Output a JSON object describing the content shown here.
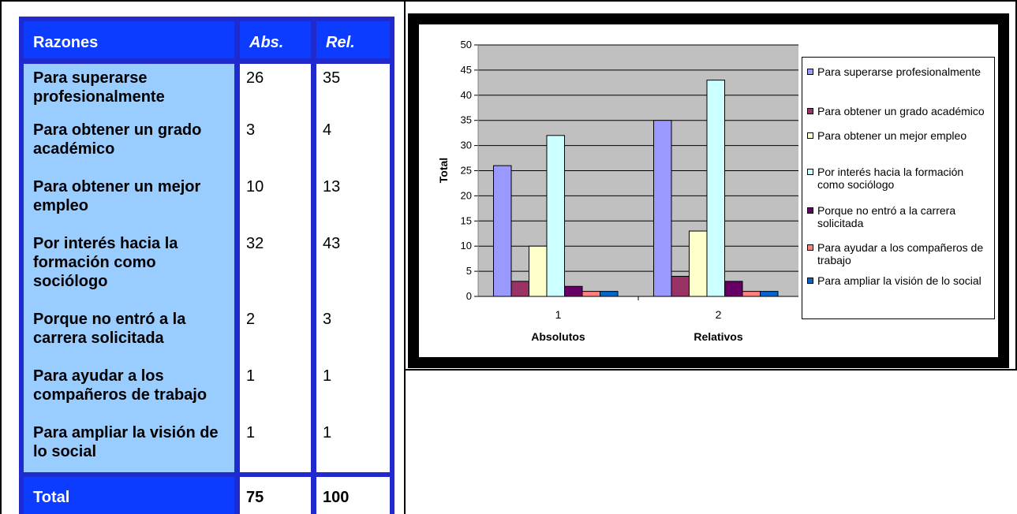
{
  "table": {
    "headers": {
      "reason": "Razones",
      "abs": "Abs.",
      "rel": "Rel."
    },
    "rows": [
      {
        "reason": "Para superarse profesionalmente",
        "abs": "26",
        "rel": "35"
      },
      {
        "reason": "Para obtener un grado académico",
        "abs": "3",
        "rel": "4"
      },
      {
        "reason": "Para obtener un mejor empleo",
        "abs": "10",
        "rel": "13"
      },
      {
        "reason": "Por interés hacia la formación como sociólogo",
        "abs": "32",
        "rel": "43"
      },
      {
        "reason": "Porque no entró a la carrera solicitada",
        "abs": "2",
        "rel": "3"
      },
      {
        "reason": "Para ayudar a los compañeros de trabajo",
        "abs": "1",
        "rel": "1"
      },
      {
        "reason": "Para ampliar la visión de lo social",
        "abs": "1",
        "rel": "1"
      }
    ],
    "total": {
      "label": "Total",
      "abs": "75",
      "rel": "100"
    }
  },
  "chart_data": {
    "type": "bar",
    "ylabel": "Total",
    "ylim": [
      0,
      50
    ],
    "yticks": [
      "0",
      "5",
      "10",
      "15",
      "20",
      "25",
      "30",
      "35",
      "40",
      "45",
      "50"
    ],
    "categories": [
      "1",
      "2"
    ],
    "category_labels": [
      "Absolutos",
      "Relativos"
    ],
    "grid": true,
    "legend_position": "right",
    "series": [
      {
        "name": "Para superarse profesionalmente",
        "color": "#9999ff",
        "values": [
          26,
          35
        ]
      },
      {
        "name": "Para obtener un grado académico",
        "color": "#993366",
        "values": [
          3,
          4
        ]
      },
      {
        "name": "Para obtener un mejor empleo",
        "color": "#ffffcc",
        "values": [
          10,
          13
        ]
      },
      {
        "name": "Por interés hacia la formación como sociólogo",
        "color": "#ccffff",
        "values": [
          32,
          43
        ]
      },
      {
        "name": "Porque no entró a la carrera solicitada",
        "color": "#660066",
        "values": [
          2,
          3
        ]
      },
      {
        "name": "Para ayudar a los compañeros de trabajo",
        "color": "#ff8080",
        "values": [
          1,
          1
        ]
      },
      {
        "name": "Para ampliar la visión de lo social",
        "color": "#0066cc",
        "values": [
          1,
          1
        ]
      }
    ]
  }
}
